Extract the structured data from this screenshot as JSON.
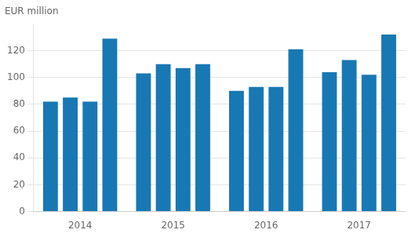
{
  "chart_data": {
    "type": "bar",
    "ylabel": "EUR million",
    "categories": [
      "2014",
      "2015",
      "2016",
      "2017"
    ],
    "series": [
      {
        "values": [
          82,
          103,
          90,
          104
        ]
      },
      {
        "values": [
          85,
          110,
          93,
          113
        ]
      },
      {
        "values": [
          82,
          107,
          93,
          102
        ]
      },
      {
        "values": [
          129,
          110,
          121,
          132
        ]
      }
    ],
    "color": "#1878b4",
    "ylim": [
      0,
      140
    ],
    "yticks": [
      0,
      20,
      40,
      60,
      80,
      100,
      120
    ],
    "grid": true
  }
}
